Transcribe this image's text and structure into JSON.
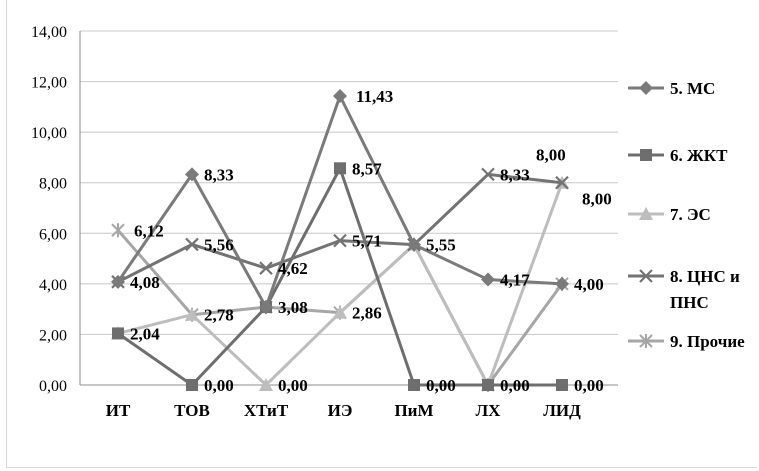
{
  "chart_data": {
    "type": "line",
    "title": "",
    "xlabel": "",
    "ylabel": "",
    "categories": [
      "ИТ",
      "ТОВ",
      "ХТиТ",
      "ИЭ",
      "ПиМ",
      "ЛХ",
      "ЛИД"
    ],
    "ylim": [
      0,
      14
    ],
    "yticks": [
      "0,00",
      "2,00",
      "4,00",
      "6,00",
      "8,00",
      "10,00",
      "12,00",
      "14,00"
    ],
    "grid": true,
    "legend_position": "right",
    "series": [
      {
        "name": "5. МС",
        "marker": "diamond",
        "color": "#7a7a7a",
        "values": [
          4.08,
          8.33,
          3.08,
          11.43,
          5.55,
          4.17,
          4.0
        ],
        "labels": [
          "4,08",
          "8,33",
          "3,08",
          "11,43",
          "5,55",
          "4,17",
          "4,00"
        ]
      },
      {
        "name": "6. ЖКТ",
        "marker": "square",
        "color": "#6e6e6e",
        "values": [
          2.04,
          0.0,
          3.08,
          8.57,
          0.0,
          0.0,
          0.0
        ],
        "labels": [
          "2,04",
          "0,00",
          "",
          "8,57",
          "0,00",
          "0,00",
          "0,00"
        ]
      },
      {
        "name": "7. ЭС",
        "marker": "triangle",
        "color": "#bdbdbd",
        "values": [
          2.04,
          2.78,
          0.0,
          2.86,
          5.55,
          0.0,
          8.0
        ],
        "labels": [
          "",
          "2,78",
          "0,00",
          "2,86",
          "",
          "",
          "8,00"
        ]
      },
      {
        "name": "8. ЦНС и ПНС",
        "marker": "x",
        "color": "#737373",
        "values": [
          4.08,
          5.56,
          4.62,
          5.71,
          5.55,
          8.33,
          8.0
        ],
        "labels": [
          "",
          "5,56",
          "4,62",
          "5,71",
          "",
          "8,33",
          "8,00"
        ]
      },
      {
        "name": "9. Прочие",
        "marker": "star",
        "color": "#a6a6a6",
        "values": [
          6.12,
          2.78,
          3.08,
          2.86,
          5.55,
          0.0,
          4.0
        ],
        "labels": [
          "6,12",
          "",
          "",
          "",
          "",
          "",
          ""
        ]
      }
    ]
  }
}
